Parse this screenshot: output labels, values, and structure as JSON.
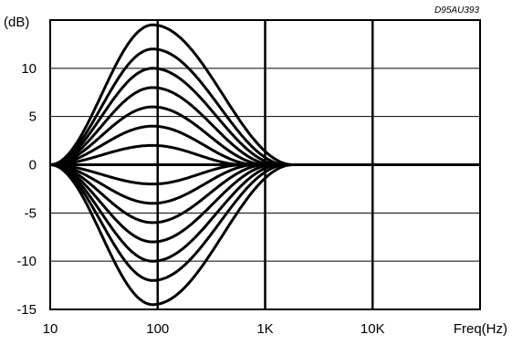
{
  "chart_data": {
    "type": "line",
    "title": "",
    "reference_code": "D95AU393",
    "xlabel": "Freq(Hz)",
    "ylabel": "(dB)",
    "x_scale": "log",
    "xlim": [
      10,
      100000
    ],
    "ylim": [
      -15,
      15
    ],
    "x_ticks": [
      {
        "value": 10,
        "label": "10"
      },
      {
        "value": 100,
        "label": "100"
      },
      {
        "value": 1000,
        "label": "1K"
      },
      {
        "value": 10000,
        "label": "10K"
      }
    ],
    "y_ticks": [
      {
        "value": 10,
        "label": "10"
      },
      {
        "value": 5,
        "label": "5"
      },
      {
        "value": 0,
        "label": "0"
      },
      {
        "value": -5,
        "label": "-5"
      },
      {
        "value": -10,
        "label": "-10"
      },
      {
        "value": -15,
        "label": "-15"
      }
    ],
    "grid": true,
    "center_frequency": 90,
    "series": [
      {
        "peak_gain_db": 14.5
      },
      {
        "peak_gain_db": 12
      },
      {
        "peak_gain_db": 10
      },
      {
        "peak_gain_db": 8
      },
      {
        "peak_gain_db": 6
      },
      {
        "peak_gain_db": 4
      },
      {
        "peak_gain_db": 2
      },
      {
        "peak_gain_db": 0
      },
      {
        "peak_gain_db": -2
      },
      {
        "peak_gain_db": -4
      },
      {
        "peak_gain_db": -6
      },
      {
        "peak_gain_db": -8
      },
      {
        "peak_gain_db": -10
      },
      {
        "peak_gain_db": -12
      },
      {
        "peak_gain_db": -14.5
      }
    ]
  }
}
